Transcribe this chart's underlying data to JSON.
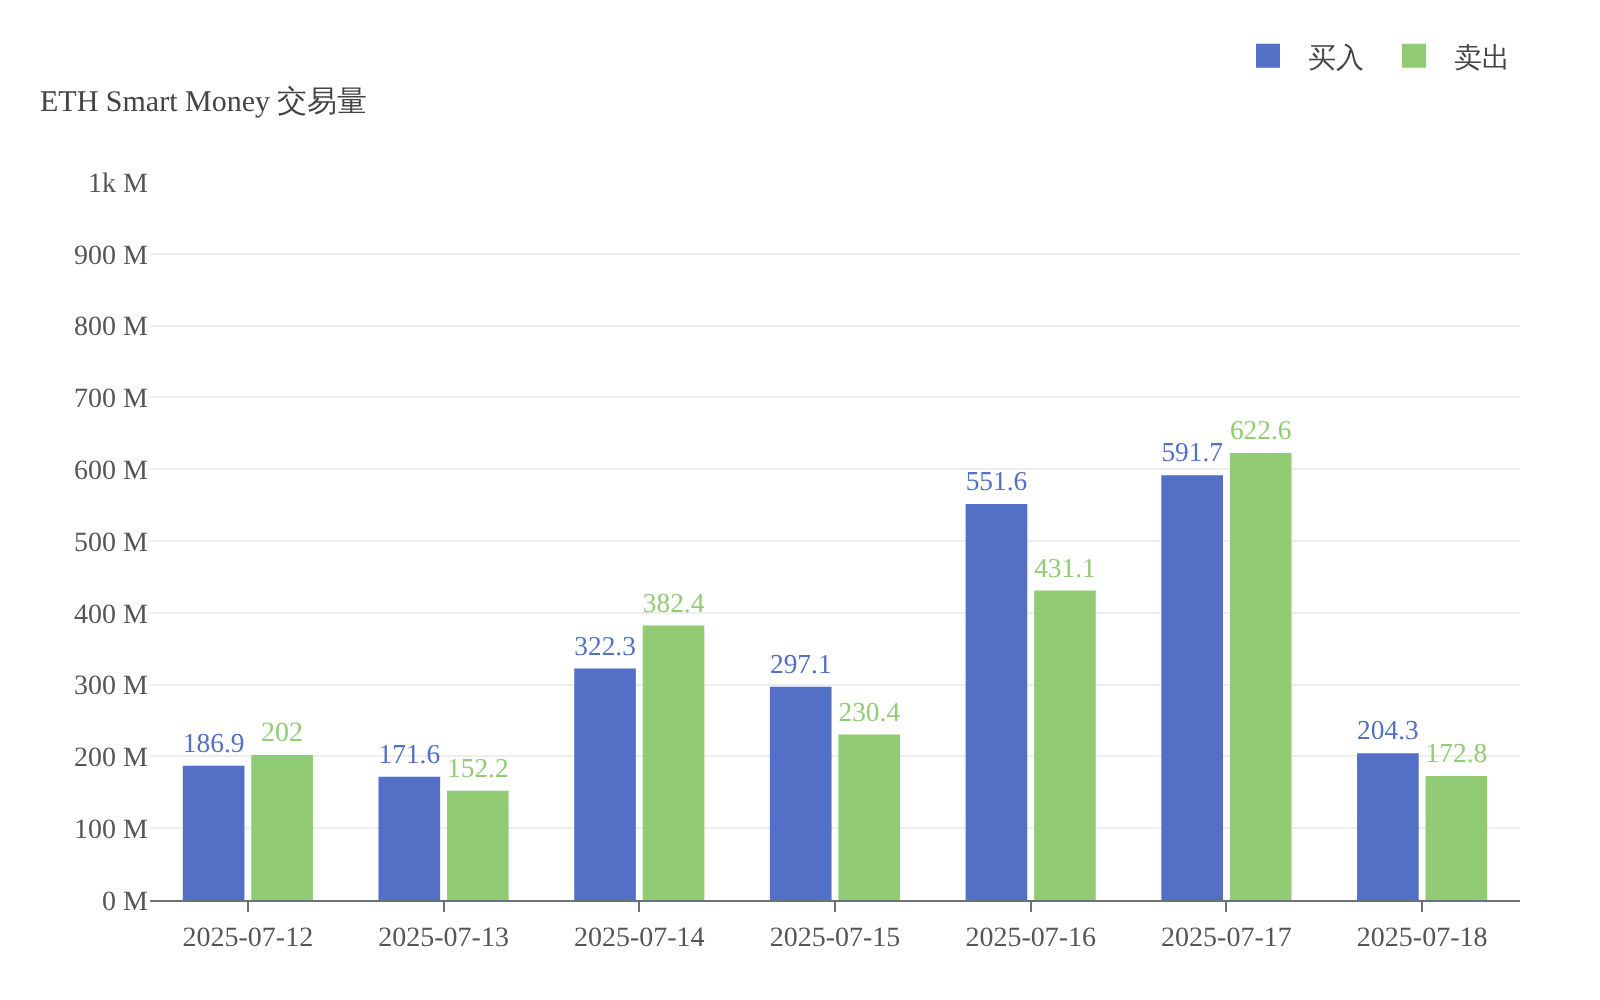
{
  "chart_data": {
    "type": "bar",
    "title": "ETH Smart Money 交易量",
    "categories": [
      "2025-07-12",
      "2025-07-13",
      "2025-07-14",
      "2025-07-15",
      "2025-07-16",
      "2025-07-17",
      "2025-07-18"
    ],
    "series": [
      {
        "name": "买入",
        "color": "#5470c6",
        "values": [
          186.9,
          171.6,
          322.3,
          297.1,
          551.6,
          591.7,
          204.3
        ]
      },
      {
        "name": "卖出",
        "color": "#91cc75",
        "values": [
          202,
          152.2,
          382.4,
          230.4,
          431.1,
          622.6,
          172.8
        ]
      }
    ],
    "ylim": [
      0,
      1000
    ],
    "yticks": [
      {
        "value": 0,
        "label": "0 M"
      },
      {
        "value": 100,
        "label": "100 M"
      },
      {
        "value": 200,
        "label": "200 M"
      },
      {
        "value": 300,
        "label": "300 M"
      },
      {
        "value": 400,
        "label": "400 M"
      },
      {
        "value": 500,
        "label": "500 M"
      },
      {
        "value": 600,
        "label": "600 M"
      },
      {
        "value": 700,
        "label": "700 M"
      },
      {
        "value": 800,
        "label": "800 M"
      },
      {
        "value": 900,
        "label": "900 M"
      },
      {
        "value": 1000,
        "label": "1k M"
      }
    ],
    "grid": "y",
    "legend": "top right",
    "data_labels": true
  }
}
